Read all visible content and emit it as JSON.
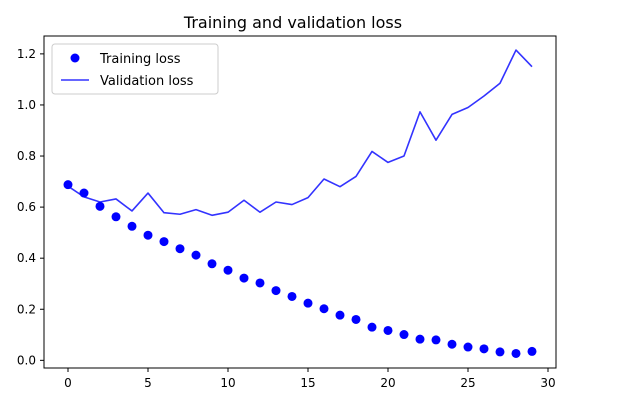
{
  "chart_data": {
    "type": "line",
    "title": "Training and validation loss",
    "xlabel": "",
    "ylabel": "",
    "xlim": [
      -1.5,
      30.5
    ],
    "ylim": [
      -0.03,
      1.27
    ],
    "xticks": [
      0,
      5,
      10,
      15,
      20,
      25,
      30
    ],
    "yticks": [
      0.0,
      0.2,
      0.4,
      0.6,
      0.8,
      1.0,
      1.2
    ],
    "xtick_labels": [
      "0",
      "5",
      "10",
      "15",
      "20",
      "25",
      "30"
    ],
    "ytick_labels": [
      "0.0",
      "0.2",
      "0.4",
      "0.6",
      "0.8",
      "1.0",
      "1.2"
    ],
    "grid": false,
    "legend_position": "top-left",
    "x": [
      0,
      1,
      2,
      3,
      4,
      5,
      6,
      7,
      8,
      9,
      10,
      11,
      12,
      13,
      14,
      15,
      16,
      17,
      18,
      19,
      20,
      21,
      22,
      23,
      24,
      25,
      26,
      27,
      28,
      29
    ],
    "series": [
      {
        "name": "Training loss",
        "style": "dots",
        "color": "#0000ff",
        "values": [
          0.688,
          0.655,
          0.603,
          0.562,
          0.525,
          0.49,
          0.465,
          0.437,
          0.412,
          0.378,
          0.353,
          0.322,
          0.303,
          0.273,
          0.25,
          0.224,
          0.202,
          0.177,
          0.16,
          0.13,
          0.117,
          0.101,
          0.083,
          0.08,
          0.063,
          0.052,
          0.045,
          0.033,
          0.027,
          0.035
        ]
      },
      {
        "name": "Validation loss",
        "style": "line",
        "color": "#3333ff",
        "values": [
          0.682,
          0.64,
          0.62,
          0.632,
          0.585,
          0.655,
          0.578,
          0.572,
          0.59,
          0.568,
          0.58,
          0.627,
          0.58,
          0.62,
          0.61,
          0.637,
          0.71,
          0.68,
          0.72,
          0.818,
          0.775,
          0.8,
          0.973,
          0.862,
          0.963,
          0.99,
          1.035,
          1.085,
          1.215,
          1.15
        ]
      }
    ]
  }
}
